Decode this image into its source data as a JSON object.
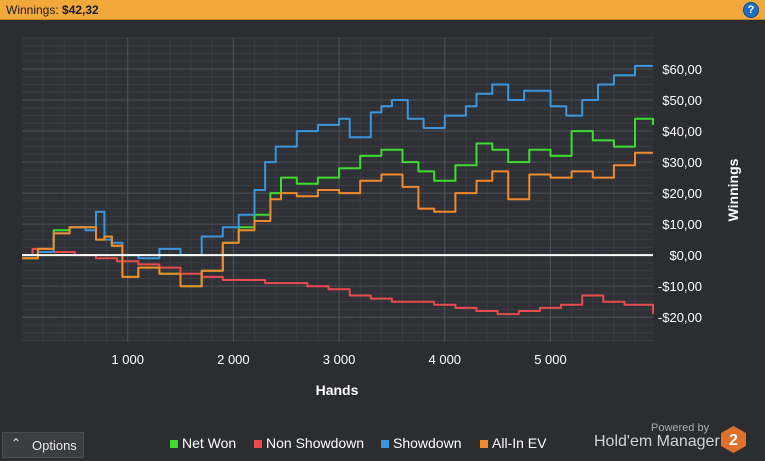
{
  "header": {
    "label": "Winnings:",
    "value": "$42,32",
    "help_glyph": "?"
  },
  "footer": {
    "options_label": "Options",
    "powered_by": "Powered by",
    "brand": "Hold'em Manager",
    "brand_logo_text": "2"
  },
  "colors": {
    "title_bar": "#f2a93b",
    "background": "#2b2d31",
    "plot_bg": "#2f3136",
    "zero_line": "#ffffff"
  },
  "chart_data": {
    "type": "line",
    "title": "",
    "xlabel": "Hands",
    "ylabel": "Winnings",
    "xlim": [
      0,
      5970
    ],
    "ylim": [
      -28,
      70
    ],
    "x_ticks": [
      1000,
      2000,
      3000,
      4000,
      5000
    ],
    "x_tick_labels": [
      "1 000",
      "2 000",
      "3 000",
      "4 000",
      "5 000"
    ],
    "y_ticks": [
      -20,
      -10,
      0,
      10,
      20,
      30,
      40,
      50,
      60
    ],
    "y_tick_labels": [
      "-$20,00",
      "-$10,00",
      "$0,00",
      "$10,00",
      "$20,00",
      "$30,00",
      "$40,00",
      "$50,00",
      "$60,00"
    ],
    "y_axis_side": "right",
    "grid": true,
    "legend_position": "bottom",
    "series": [
      {
        "name": "Net Won",
        "color": "#3ddc2f",
        "x": [
          0,
          150,
          300,
          450,
          600,
          700,
          780,
          850,
          950,
          1100,
          1300,
          1500,
          1700,
          1900,
          2050,
          2200,
          2350,
          2450,
          2600,
          2800,
          3000,
          3200,
          3400,
          3600,
          3750,
          3900,
          4100,
          4300,
          4450,
          4600,
          4800,
          5000,
          5200,
          5400,
          5600,
          5800,
          5970
        ],
        "values": [
          -1,
          2,
          8,
          9,
          9,
          5,
          6,
          3,
          -7,
          -4,
          -6,
          -10,
          -5,
          4,
          9,
          13,
          20,
          25,
          23,
          25,
          28,
          32,
          34,
          30,
          27,
          24,
          29,
          36,
          34,
          30,
          34,
          32,
          40,
          37,
          35,
          44,
          42
        ]
      },
      {
        "name": "Non Showdown",
        "color": "#e84b4b",
        "x": [
          0,
          100,
          300,
          500,
          700,
          900,
          1100,
          1300,
          1500,
          1700,
          1900,
          2100,
          2300,
          2500,
          2700,
          2900,
          3100,
          3300,
          3500,
          3700,
          3900,
          4100,
          4300,
          4500,
          4700,
          4900,
          5100,
          5300,
          5500,
          5700,
          5970
        ],
        "values": [
          0,
          2,
          1,
          0,
          -1,
          -2,
          -3,
          -4,
          -6,
          -7,
          -8,
          -8,
          -9,
          -9,
          -10,
          -11,
          -13,
          -14,
          -15,
          -15,
          -16,
          -17,
          -18,
          -19,
          -18,
          -17,
          -16,
          -13,
          -15,
          -16,
          -19
        ]
      },
      {
        "name": "Showdown",
        "color": "#3b96de",
        "x": [
          0,
          150,
          300,
          450,
          600,
          700,
          780,
          850,
          950,
          1100,
          1300,
          1500,
          1700,
          1900,
          2050,
          2200,
          2300,
          2400,
          2600,
          2800,
          3000,
          3100,
          3300,
          3400,
          3500,
          3650,
          3800,
          4000,
          4200,
          4300,
          4450,
          4600,
          4750,
          5000,
          5150,
          5300,
          5450,
          5600,
          5800,
          5970
        ],
        "values": [
          0,
          1,
          7,
          9,
          8,
          14,
          5,
          4,
          0,
          -1,
          2,
          0,
          6,
          9,
          13,
          21,
          30,
          35,
          40,
          42,
          44,
          38,
          46,
          48,
          50,
          44,
          41,
          45,
          48,
          52,
          55,
          50,
          53,
          48,
          45,
          50,
          55,
          58,
          61,
          61
        ]
      },
      {
        "name": "All-In EV",
        "color": "#f08a2c",
        "x": [
          0,
          150,
          300,
          450,
          600,
          700,
          780,
          850,
          950,
          1100,
          1300,
          1500,
          1700,
          1900,
          2050,
          2200,
          2350,
          2450,
          2600,
          2800,
          3000,
          3200,
          3400,
          3600,
          3750,
          3900,
          4100,
          4300,
          4450,
          4600,
          4800,
          5000,
          5200,
          5400,
          5600,
          5800,
          5970
        ],
        "values": [
          -1,
          2,
          7,
          9,
          9,
          5,
          6,
          3,
          -7,
          -4,
          -6,
          -10,
          -5,
          4,
          8,
          11,
          18,
          20,
          19,
          21,
          20,
          24,
          26,
          22,
          15,
          14,
          20,
          24,
          27,
          18,
          26,
          25,
          27,
          25,
          29,
          33,
          33
        ]
      }
    ]
  }
}
